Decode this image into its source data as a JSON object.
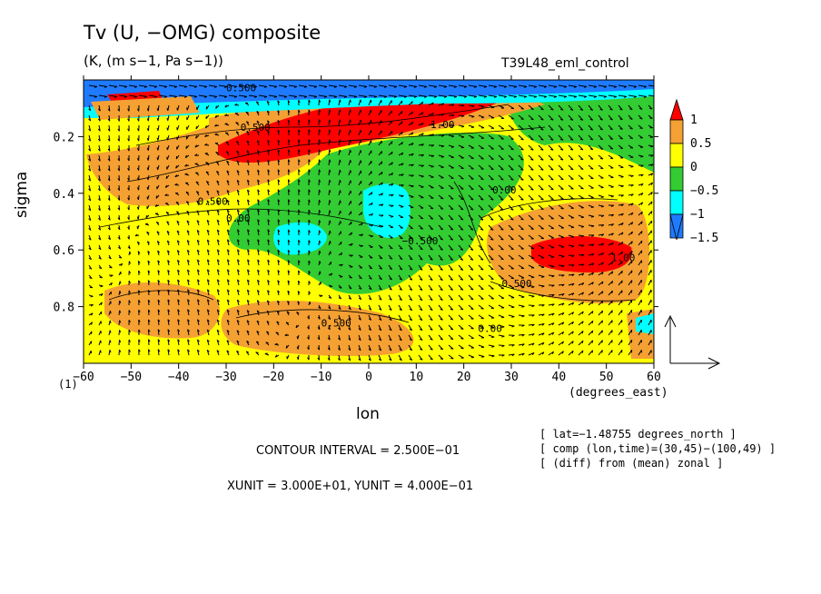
{
  "title": "Tv (U, −OMG) composite",
  "subtitle": "(K, (m s−1, Pa s−1))",
  "experiment": "T39L48_eml_control",
  "info_lines": [
    "[ lat=−1.48755 degrees_north ]",
    "[ comp (lon,time)=(30,45)−(100,49) ]",
    "[ (diff) from (mean) zonal ]"
  ],
  "contour_interval": "CONTOUR INTERVAL = 2.500E−01",
  "units_line": "XUNIT = 3.000E+01, YUNIT = 4.000E−01",
  "paren_label": "(1)",
  "colors": {
    "red": "#ff0000",
    "orange": "#f5a033",
    "yellow": "#ffff00",
    "green": "#33cc33",
    "cyan": "#00ffff",
    "blue": "#1e7bff"
  },
  "chart_data": {
    "type": "heatmap",
    "xlabel": "lon",
    "xunit_label": "(degrees_east)",
    "ylabel": "sigma",
    "xlim": [
      -60,
      60
    ],
    "ylim": [
      0,
      1
    ],
    "y_inverted": true,
    "xticks": [
      -60,
      -50,
      -40,
      -30,
      -20,
      -10,
      0,
      10,
      20,
      30,
      40,
      50,
      60
    ],
    "xticklabels": [
      "−60",
      "−50",
      "−40",
      "−30",
      "−20",
      "−10",
      "0",
      "10",
      "20",
      "30",
      "40",
      "50",
      "60"
    ],
    "yticks": [
      0.2,
      0.4,
      0.6,
      0.8
    ],
    "yticklabels": [
      "0.2",
      "0.4",
      "0.6",
      "0.8"
    ],
    "colorbar": {
      "levels": [
        1,
        0.5,
        0,
        -0.5,
        -1,
        -1.5
      ],
      "labels": [
        "1",
        "0.5",
        "0",
        "−0.5",
        "−1",
        "−1.5"
      ]
    },
    "contour_labels": [
      {
        "text": "0.500",
        "x": -30,
        "y": 0.04
      },
      {
        "text": "0.500",
        "x": -27,
        "y": 0.18
      },
      {
        "text": "1.00",
        "x": 13,
        "y": 0.17
      },
      {
        "text": "0.500",
        "x": -36,
        "y": 0.44
      },
      {
        "text": "0.00",
        "x": -30,
        "y": 0.5
      },
      {
        "text": "−0.500",
        "x": 7,
        "y": 0.58
      },
      {
        "text": "0.00",
        "x": 26,
        "y": 0.4
      },
      {
        "text": "0.500",
        "x": 28,
        "y": 0.73
      },
      {
        "text": "0.500",
        "x": -10,
        "y": 0.87
      },
      {
        "text": "0.00",
        "x": 23,
        "y": 0.89
      },
      {
        "text": "1.00",
        "x": 51,
        "y": 0.64
      }
    ],
    "features": [
      {
        "value": 1.0,
        "lon": [
          -30,
          30
        ],
        "sigma": [
          0.1,
          0.25
        ],
        "note": "upper-level warm anomaly"
      },
      {
        "value": 1.0,
        "lon": [
          35,
          55
        ],
        "sigma": [
          0.58,
          0.7
        ],
        "note": "mid-level warm anomaly"
      },
      {
        "value": -1.0,
        "lon": [
          0,
          10
        ],
        "sigma": [
          0.35,
          0.55
        ],
        "note": "cold anomaly"
      },
      {
        "value": -1.0,
        "lon": [
          -18,
          -8
        ],
        "sigma": [
          0.55,
          0.65
        ],
        "note": "cold anomaly"
      },
      {
        "value": -1.5,
        "lon": [
          -60,
          60
        ],
        "sigma": [
          0.0,
          0.1
        ],
        "note": "upper cold layer"
      }
    ],
    "vector_reference": {
      "xunit": 30,
      "yunit": 0.4
    }
  }
}
